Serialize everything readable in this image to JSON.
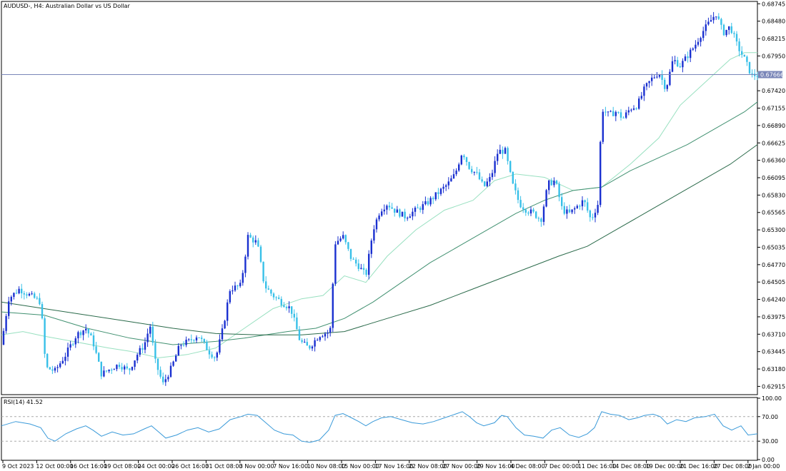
{
  "chart_data": [
    {
      "type": "candlestick",
      "title": "AUDUSD-, H4:  Australian Dollar vs US Dollar",
      "ylim": [
        0.628,
        0.6877
      ],
      "y_ticks": [
        "0.68745",
        "0.68480",
        "0.68215",
        "0.67950",
        "0.67420",
        "0.67155",
        "0.66890",
        "0.66625",
        "0.66360",
        "0.66095",
        "0.65830",
        "0.65565",
        "0.65300",
        "0.65035",
        "0.64770",
        "0.64505",
        "0.64240",
        "0.63975",
        "0.63710",
        "0.63445",
        "0.63180",
        "0.62915"
      ],
      "x_ticks": [
        "9 Oct 2023",
        "12 Oct 00:00",
        "16 Oct 16:00",
        "19 Oct 08:00",
        "24 Oct 00:00",
        "26 Oct 16:00",
        "31 Oct 08:00",
        "3 Nov 00:00",
        "7 Nov 16:00",
        "10 Nov 08:00",
        "15 Nov 00:00",
        "17 Nov 16:00",
        "22 Nov 08:00",
        "27 Nov 00:00",
        "29 Nov 16:00",
        "4 Dec 08:00",
        "7 Dec 00:00",
        "11 Dec 16:00",
        "14 Dec 08:00",
        "19 Dec 00:00",
        "21 Dec 16:00",
        "27 Dec 08:00",
        "2 Jan 00:00"
      ],
      "current_price": "0.67666",
      "close_path": [
        [
          0,
          0.6355
        ],
        [
          10,
          0.6425
        ],
        [
          25,
          0.644
        ],
        [
          40,
          0.643
        ],
        [
          55,
          0.642
        ],
        [
          62,
          0.632
        ],
        [
          75,
          0.6315
        ],
        [
          90,
          0.634
        ],
        [
          105,
          0.637
        ],
        [
          118,
          0.638
        ],
        [
          128,
          0.636
        ],
        [
          140,
          0.631
        ],
        [
          155,
          0.632
        ],
        [
          165,
          0.6325
        ],
        [
          178,
          0.6315
        ],
        [
          190,
          0.634
        ],
        [
          200,
          0.6355
        ],
        [
          208,
          0.6385
        ],
        [
          215,
          0.633
        ],
        [
          226,
          0.6295
        ],
        [
          238,
          0.632
        ],
        [
          250,
          0.6355
        ],
        [
          262,
          0.636
        ],
        [
          275,
          0.637
        ],
        [
          290,
          0.6345
        ],
        [
          300,
          0.6335
        ],
        [
          310,
          0.638
        ],
        [
          320,
          0.644
        ],
        [
          335,
          0.6445
        ],
        [
          345,
          0.652
        ],
        [
          358,
          0.651
        ],
        [
          368,
          0.6445
        ],
        [
          380,
          0.643
        ],
        [
          392,
          0.642
        ],
        [
          405,
          0.641
        ],
        [
          418,
          0.636
        ],
        [
          430,
          0.635
        ],
        [
          445,
          0.637
        ],
        [
          460,
          0.6375
        ],
        [
          467,
          0.651
        ],
        [
          478,
          0.652
        ],
        [
          490,
          0.6485
        ],
        [
          500,
          0.6475
        ],
        [
          510,
          0.646
        ],
        [
          520,
          0.653
        ],
        [
          530,
          0.656
        ],
        [
          540,
          0.657
        ],
        [
          550,
          0.656
        ],
        [
          565,
          0.655
        ],
        [
          580,
          0.656
        ],
        [
          595,
          0.657
        ],
        [
          605,
          0.658
        ],
        [
          615,
          0.659
        ],
        [
          625,
          0.66
        ],
        [
          635,
          0.6615
        ],
        [
          645,
          0.665
        ],
        [
          655,
          0.6625
        ],
        [
          665,
          0.6615
        ],
        [
          675,
          0.6595
        ],
        [
          685,
          0.661
        ],
        [
          695,
          0.665
        ],
        [
          705,
          0.665
        ],
        [
          715,
          0.66
        ],
        [
          725,
          0.657
        ],
        [
          735,
          0.656
        ],
        [
          745,
          0.6555
        ],
        [
          755,
          0.6545
        ],
        [
          765,
          0.66
        ],
        [
          775,
          0.6605
        ],
        [
          785,
          0.656
        ],
        [
          795,
          0.6555
        ],
        [
          805,
          0.6565
        ],
        [
          815,
          0.6575
        ],
        [
          825,
          0.6545
        ],
        [
          835,
          0.657
        ],
        [
          840,
          0.6715
        ],
        [
          850,
          0.6705
        ],
        [
          860,
          0.671
        ],
        [
          870,
          0.67
        ],
        [
          880,
          0.6715
        ],
        [
          890,
          0.672
        ],
        [
          900,
          0.6745
        ],
        [
          910,
          0.676
        ],
        [
          920,
          0.677
        ],
        [
          930,
          0.6745
        ],
        [
          940,
          0.679
        ],
        [
          950,
          0.678
        ],
        [
          960,
          0.6795
        ],
        [
          970,
          0.681
        ],
        [
          980,
          0.683
        ],
        [
          990,
          0.6845
        ],
        [
          1000,
          0.686
        ],
        [
          1010,
          0.683
        ],
        [
          1020,
          0.684
        ],
        [
          1030,
          0.681
        ],
        [
          1040,
          0.679
        ],
        [
          1050,
          0.6765
        ],
        [
          1060,
          0.6767
        ]
      ],
      "series": [
        {
          "color": "#98e0c0",
          "points": [
            [
              0,
              0.637
            ],
            [
              30,
              0.6375
            ],
            [
              60,
              0.6368
            ],
            [
              100,
              0.636
            ],
            [
              150,
              0.635
            ],
            [
              180,
              0.6345
            ],
            [
              220,
              0.6335
            ],
            [
              260,
              0.634
            ],
            [
              300,
              0.635
            ],
            [
              340,
              0.638
            ],
            [
              380,
              0.641
            ],
            [
              420,
              0.6425
            ],
            [
              450,
              0.643
            ],
            [
              480,
              0.646
            ],
            [
              510,
              0.645
            ],
            [
              540,
              0.649
            ],
            [
              580,
              0.653
            ],
            [
              620,
              0.656
            ],
            [
              660,
              0.6575
            ],
            [
              690,
              0.6605
            ],
            [
              720,
              0.6615
            ],
            [
              760,
              0.661
            ],
            [
              800,
              0.659
            ],
            [
              840,
              0.6595
            ],
            [
              880,
              0.663
            ],
            [
              920,
              0.667
            ],
            [
              950,
              0.672
            ],
            [
              990,
              0.676
            ],
            [
              1020,
              0.679
            ],
            [
              1040,
              0.68
            ],
            [
              1058,
              0.68
            ]
          ]
        },
        {
          "color": "#409070",
          "points": [
            [
              0,
              0.6405
            ],
            [
              60,
              0.64
            ],
            [
              120,
              0.638
            ],
            [
              180,
              0.6365
            ],
            [
              240,
              0.6355
            ],
            [
              300,
              0.636
            ],
            [
              340,
              0.6365
            ],
            [
              400,
              0.6375
            ],
            [
              440,
              0.638
            ],
            [
              480,
              0.6395
            ],
            [
              520,
              0.642
            ],
            [
              560,
              0.645
            ],
            [
              600,
              0.648
            ],
            [
              640,
              0.6505
            ],
            [
              680,
              0.653
            ],
            [
              720,
              0.6555
            ],
            [
              760,
              0.6575
            ],
            [
              800,
              0.659
            ],
            [
              840,
              0.6595
            ],
            [
              880,
              0.662
            ],
            [
              920,
              0.664
            ],
            [
              960,
              0.666
            ],
            [
              1000,
              0.6685
            ],
            [
              1040,
              0.671
            ],
            [
              1058,
              0.6725
            ]
          ]
        },
        {
          "color": "#2a6a4a",
          "points": [
            [
              0,
              0.642
            ],
            [
              60,
              0.641
            ],
            [
              120,
              0.64
            ],
            [
              180,
              0.639
            ],
            [
              240,
              0.638
            ],
            [
              300,
              0.6372
            ],
            [
              360,
              0.637
            ],
            [
              420,
              0.637
            ],
            [
              480,
              0.6375
            ],
            [
              540,
              0.6395
            ],
            [
              600,
              0.6415
            ],
            [
              660,
              0.644
            ],
            [
              720,
              0.6465
            ],
            [
              780,
              0.649
            ],
            [
              820,
              0.6505
            ],
            [
              860,
              0.653
            ],
            [
              900,
              0.6555
            ],
            [
              940,
              0.658
            ],
            [
              980,
              0.6605
            ],
            [
              1020,
              0.663
            ],
            [
              1058,
              0.666
            ]
          ]
        }
      ]
    },
    {
      "type": "line",
      "title": "RSI(14) 41.52",
      "ylim": [
        0,
        100
      ],
      "y_ticks": [
        "100.00",
        "70.00",
        "30.00",
        "0.00"
      ],
      "levels": [
        70,
        30
      ],
      "color": "#3a9ad9",
      "points": [
        [
          0,
          55
        ],
        [
          20,
          62
        ],
        [
          40,
          58
        ],
        [
          55,
          52
        ],
        [
          65,
          35
        ],
        [
          75,
          30
        ],
        [
          90,
          42
        ],
        [
          105,
          50
        ],
        [
          118,
          55
        ],
        [
          128,
          48
        ],
        [
          140,
          38
        ],
        [
          155,
          45
        ],
        [
          170,
          40
        ],
        [
          185,
          42
        ],
        [
          200,
          50
        ],
        [
          210,
          55
        ],
        [
          220,
          45
        ],
        [
          230,
          35
        ],
        [
          245,
          40
        ],
        [
          260,
          48
        ],
        [
          275,
          52
        ],
        [
          290,
          45
        ],
        [
          305,
          50
        ],
        [
          320,
          65
        ],
        [
          335,
          70
        ],
        [
          345,
          74
        ],
        [
          358,
          72
        ],
        [
          370,
          60
        ],
        [
          382,
          48
        ],
        [
          395,
          42
        ],
        [
          408,
          40
        ],
        [
          420,
          30
        ],
        [
          432,
          28
        ],
        [
          445,
          32
        ],
        [
          458,
          48
        ],
        [
          467,
          72
        ],
        [
          478,
          75
        ],
        [
          490,
          68
        ],
        [
          500,
          62
        ],
        [
          510,
          55
        ],
        [
          520,
          62
        ],
        [
          532,
          68
        ],
        [
          545,
          70
        ],
        [
          560,
          65
        ],
        [
          575,
          60
        ],
        [
          590,
          58
        ],
        [
          605,
          62
        ],
        [
          620,
          68
        ],
        [
          635,
          74
        ],
        [
          645,
          78
        ],
        [
          655,
          70
        ],
        [
          665,
          60
        ],
        [
          675,
          55
        ],
        [
          690,
          60
        ],
        [
          700,
          72
        ],
        [
          708,
          70
        ],
        [
          720,
          52
        ],
        [
          732,
          40
        ],
        [
          745,
          38
        ],
        [
          758,
          35
        ],
        [
          770,
          48
        ],
        [
          782,
          52
        ],
        [
          795,
          40
        ],
        [
          808,
          36
        ],
        [
          820,
          42
        ],
        [
          830,
          52
        ],
        [
          840,
          78
        ],
        [
          852,
          74
        ],
        [
          865,
          72
        ],
        [
          878,
          65
        ],
        [
          890,
          68
        ],
        [
          900,
          72
        ],
        [
          912,
          74
        ],
        [
          922,
          70
        ],
        [
          932,
          58
        ],
        [
          945,
          65
        ],
        [
          958,
          62
        ],
        [
          970,
          68
        ],
        [
          985,
          70
        ],
        [
          998,
          74
        ],
        [
          1010,
          55
        ],
        [
          1022,
          48
        ],
        [
          1035,
          55
        ],
        [
          1045,
          40
        ],
        [
          1058,
          42
        ]
      ]
    }
  ]
}
